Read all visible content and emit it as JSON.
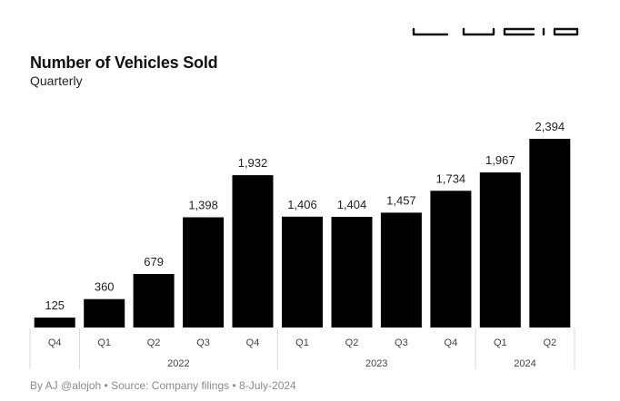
{
  "header": {
    "title": "Number of Vehicles Sold",
    "subtitle": "Quarterly",
    "logo_text": "LUCID"
  },
  "footer": {
    "credit": "By AJ @alojoh • Source: Company filings • 8-July-2024"
  },
  "chart_data": {
    "type": "bar",
    "categories": [
      "Q4",
      "Q1",
      "Q2",
      "Q3",
      "Q4",
      "Q1",
      "Q2",
      "Q3",
      "Q4",
      "Q1",
      "Q2"
    ],
    "year_groups": [
      {
        "label": "",
        "span": 1
      },
      {
        "label": "2022",
        "span": 4
      },
      {
        "label": "2023",
        "span": 4
      },
      {
        "label": "2024",
        "span": 2
      }
    ],
    "values": [
      125,
      360,
      679,
      1398,
      1932,
      1406,
      1404,
      1457,
      1734,
      1967,
      2394
    ],
    "value_labels": [
      "125",
      "360",
      "679",
      "1,398",
      "1,932",
      "1,406",
      "1,404",
      "1,457",
      "1,734",
      "1,967",
      "2,394"
    ],
    "ylim": [
      0,
      2394
    ],
    "grid": false,
    "colors": {
      "bar": "#000000",
      "tick_text": "#444444",
      "separator": "#d9d9d9"
    }
  }
}
